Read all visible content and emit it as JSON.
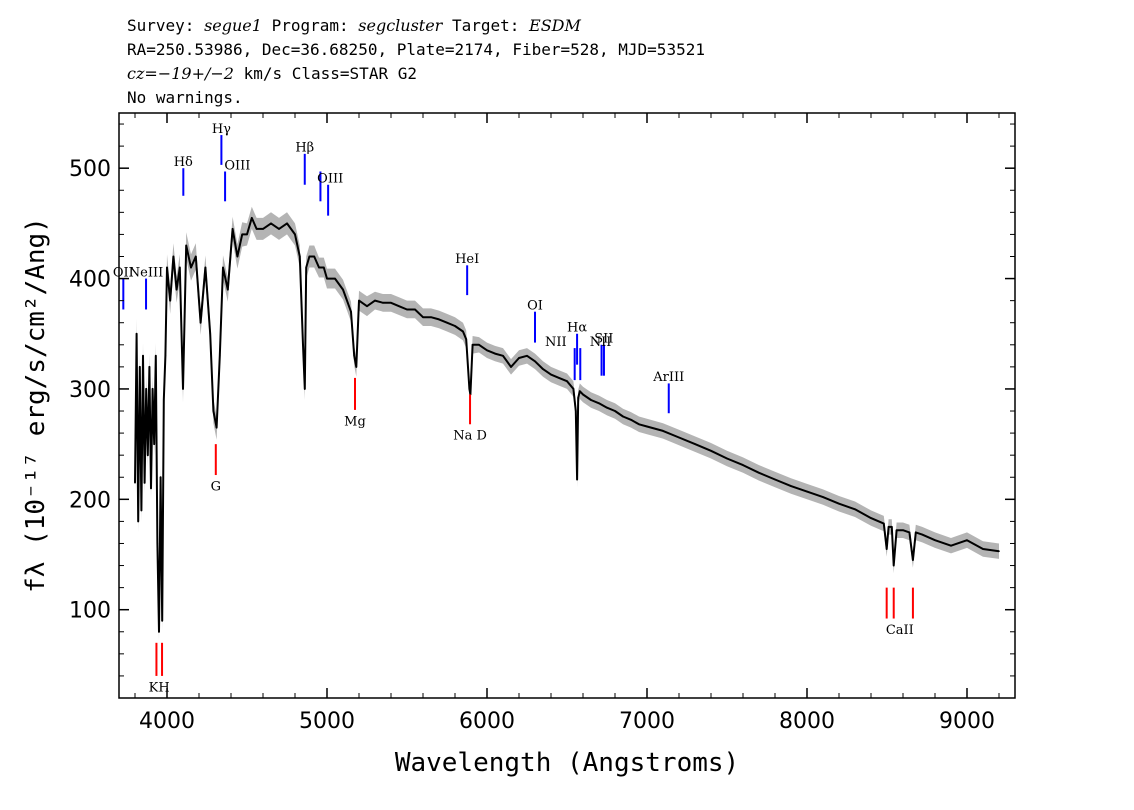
{
  "header": {
    "survey_label": "Survey: ",
    "survey": "segue1",
    "program_label": " Program: ",
    "program": "segcluster",
    "target_label": " Target: ",
    "target": "ESDM",
    "line2": "RA=250.53986, Dec=36.68250, Plate=2174, Fiber=528, MJD=53521",
    "cz": "cz",
    "cz_value": "=−19+/−2",
    "cz_rest": " km/s Class=STAR G2",
    "line4": "No warnings."
  },
  "chart_data": {
    "type": "line",
    "title": "",
    "xlabel": "Wavelength (Angstroms)",
    "ylabel": "fλ (10⁻¹⁷ erg/s/cm²/Ang)",
    "xlim": [
      3700,
      9300
    ],
    "ylim": [
      20,
      550
    ],
    "xticks": [
      4000,
      5000,
      6000,
      7000,
      8000,
      9000
    ],
    "yticks": [
      100,
      200,
      300,
      400,
      500
    ],
    "grid": false,
    "flux_color": "#000000",
    "error_color": "#b4b4b4",
    "emission_line_color": "#0000ff",
    "absorption_line_color": "#ff0000",
    "series": [
      {
        "x": [
          3800,
          3810,
          3820,
          3830,
          3840,
          3850,
          3860,
          3870,
          3880,
          3890,
          3900,
          3910,
          3920,
          3930,
          3940,
          3950,
          3960,
          3970,
          3980,
          3990,
          4000,
          4020,
          4040,
          4060,
          4080,
          4100,
          4120,
          4150,
          4180,
          4210,
          4240,
          4270,
          4290,
          4310,
          4330,
          4350,
          4380,
          4410,
          4440,
          4470,
          4500,
          4530,
          4560,
          4600,
          4650,
          4700,
          4750,
          4800,
          4830,
          4850,
          4861,
          4870,
          4890,
          4920,
          4950,
          4980,
          5000,
          5050,
          5100,
          5150,
          5170,
          5183,
          5200,
          5250,
          5300,
          5350,
          5400,
          5450,
          5500,
          5550,
          5600,
          5650,
          5700,
          5750,
          5800,
          5850,
          5870,
          5890,
          5896,
          5910,
          5950,
          6000,
          6050,
          6100,
          6150,
          6200,
          6250,
          6300,
          6350,
          6400,
          6450,
          6500,
          6540,
          6555,
          6563,
          6570,
          6580,
          6600,
          6650,
          6700,
          6750,
          6800,
          6850,
          6900,
          6950,
          7000,
          7100,
          7200,
          7300,
          7400,
          7500,
          7600,
          7700,
          7800,
          7900,
          8000,
          8100,
          8200,
          8300,
          8400,
          8480,
          8498,
          8510,
          8530,
          8542,
          8560,
          8600,
          8640,
          8662,
          8680,
          8720,
          8800,
          8900,
          9000,
          9100,
          9200
        ],
        "values": [
          215,
          350,
          180,
          320,
          190,
          330,
          215,
          300,
          240,
          320,
          210,
          300,
          250,
          330,
          160,
          80,
          220,
          90,
          290,
          330,
          410,
          380,
          420,
          390,
          410,
          300,
          430,
          410,
          420,
          360,
          410,
          350,
          280,
          265,
          330,
          410,
          390,
          445,
          420,
          440,
          440,
          455,
          445,
          445,
          450,
          445,
          450,
          440,
          420,
          340,
          300,
          410,
          420,
          420,
          410,
          410,
          400,
          400,
          390,
          370,
          330,
          320,
          380,
          375,
          380,
          378,
          378,
          375,
          372,
          372,
          365,
          365,
          363,
          360,
          357,
          352,
          345,
          300,
          295,
          340,
          340,
          335,
          332,
          330,
          320,
          328,
          330,
          325,
          318,
          313,
          310,
          307,
          300,
          280,
          218,
          292,
          298,
          295,
          290,
          287,
          283,
          280,
          275,
          272,
          268,
          266,
          262,
          256,
          250,
          244,
          237,
          231,
          224,
          218,
          212,
          207,
          202,
          196,
          191,
          183,
          178,
          155,
          175,
          175,
          140,
          172,
          172,
          170,
          145,
          170,
          168,
          163,
          158,
          163,
          155,
          153
        ],
        "error": [
          10,
          14,
          10,
          12,
          10,
          12,
          10,
          12,
          10,
          12,
          10,
          12,
          10,
          12,
          10,
          8,
          10,
          8,
          10,
          12,
          12,
          12,
          12,
          12,
          12,
          12,
          12,
          12,
          12,
          11,
          11,
          11,
          11,
          11,
          11,
          11,
          11,
          11,
          11,
          11,
          10,
          10,
          10,
          10,
          10,
          10,
          10,
          10,
          10,
          10,
          10,
          10,
          10,
          10,
          9,
          9,
          9,
          9,
          9,
          9,
          9,
          9,
          9,
          9,
          8,
          8,
          8,
          8,
          8,
          8,
          8,
          8,
          8,
          8,
          8,
          8,
          8,
          8,
          8,
          8,
          7,
          7,
          7,
          7,
          7,
          7,
          7,
          7,
          7,
          7,
          7,
          7,
          7,
          7,
          7,
          7,
          7,
          7,
          7,
          7,
          7,
          7,
          7,
          7,
          7,
          7,
          7,
          7,
          7,
          7,
          7,
          7,
          7,
          7,
          7,
          7,
          7,
          7,
          7,
          7,
          7,
          7,
          7,
          7,
          7,
          7,
          7,
          7,
          7,
          7,
          7,
          7,
          7,
          7,
          7,
          7
        ]
      }
    ],
    "emission_lines": [
      {
        "label": "OII",
        "x": 3727,
        "y_bottom": 372,
        "y_top": 400
      },
      {
        "label": "NeIII",
        "x": 3869,
        "y_bottom": 372,
        "y_top": 400
      },
      {
        "label": "Hδ",
        "x": 4102,
        "y_bottom": 475,
        "y_top": 500
      },
      {
        "label": "Hγ",
        "x": 4340,
        "y_bottom": 503,
        "y_top": 530
      },
      {
        "label": "OIII",
        "x": 4363,
        "y_bottom": 470,
        "y_top": 497
      },
      {
        "label": "Hβ",
        "x": 4861,
        "y_bottom": 485,
        "y_top": 513
      },
      {
        "label": "OIII",
        "x": 4959,
        "y_bottom": 470,
        "y_top": 497
      },
      {
        "label": "OIII",
        "x": 5007,
        "y_bottom": 457,
        "y_top": 485
      },
      {
        "label": "HeI",
        "x": 5876,
        "y_bottom": 385,
        "y_top": 412
      },
      {
        "label": "OI",
        "x": 6300,
        "y_bottom": 342,
        "y_top": 370
      },
      {
        "label": "NII",
        "x": 6548,
        "y_bottom": 308,
        "y_top": 337
      },
      {
        "label": "Hα",
        "x": 6563,
        "y_bottom": 322,
        "y_top": 350
      },
      {
        "label": "NII",
        "x": 6583,
        "y_bottom": 308,
        "y_top": 337
      },
      {
        "label": "SII",
        "x": 6716,
        "y_bottom": 312,
        "y_top": 340
      },
      {
        "label": "SII",
        "x": 6731,
        "y_bottom": 312,
        "y_top": 340
      },
      {
        "label": "ArIII",
        "x": 7136,
        "y_bottom": 278,
        "y_top": 305
      }
    ],
    "absorption_lines": [
      {
        "label": "K",
        "x": 3934,
        "y_bottom": 40,
        "y_top": 70
      },
      {
        "label": "H",
        "x": 3969,
        "y_bottom": 40,
        "y_top": 70
      },
      {
        "label": "G",
        "x": 4305,
        "y_bottom": 222,
        "y_top": 250
      },
      {
        "label": "Mg",
        "x": 5175,
        "y_bottom": 281,
        "y_top": 310
      },
      {
        "label": "Na D",
        "x": 5894,
        "y_bottom": 268,
        "y_top": 295
      },
      {
        "label": "CaII",
        "x": 8498,
        "y_bottom": 92,
        "y_top": 120
      },
      {
        "label": "CaII",
        "x": 8542,
        "y_bottom": 92,
        "y_top": 120
      },
      {
        "label": "CaII",
        "x": 8662,
        "y_bottom": 92,
        "y_top": 120
      }
    ],
    "line_labels": [
      {
        "text": "OII",
        "x": 3727,
        "y": 402,
        "kind": "emission"
      },
      {
        "text": "NeIII",
        "x": 3869,
        "y": 402,
        "kind": "emission"
      },
      {
        "text": "Hδ",
        "x": 4102,
        "y": 502,
        "kind": "emission"
      },
      {
        "text": "Hγ",
        "x": 4340,
        "y": 532,
        "kind": "emission"
      },
      {
        "text": "OIII",
        "x": 4440,
        "y": 499,
        "kind": "emission"
      },
      {
        "text": "Hβ",
        "x": 4861,
        "y": 515,
        "kind": "emission"
      },
      {
        "text": "OIII",
        "x": 5020,
        "y": 487,
        "kind": "emission"
      },
      {
        "text": "HeI",
        "x": 5876,
        "y": 414,
        "kind": "emission"
      },
      {
        "text": "OI",
        "x": 6300,
        "y": 372,
        "kind": "emission"
      },
      {
        "text": "Hα",
        "x": 6563,
        "y": 352,
        "kind": "emission"
      },
      {
        "text": "NII",
        "x": 6430,
        "y": 339,
        "kind": "emission"
      },
      {
        "text": "NII",
        "x": 6710,
        "y": 339,
        "kind": "emission"
      },
      {
        "text": "SII",
        "x": 6730,
        "y": 342,
        "kind": "emission"
      },
      {
        "text": "ArIII",
        "x": 7136,
        "y": 307,
        "kind": "emission"
      },
      {
        "text": "KH",
        "x": 3951,
        "y": 26,
        "kind": "absorption"
      },
      {
        "text": "G",
        "x": 4305,
        "y": 208,
        "kind": "absorption"
      },
      {
        "text": "Mg",
        "x": 5175,
        "y": 267,
        "kind": "absorption"
      },
      {
        "text": "Na D",
        "x": 5894,
        "y": 254,
        "kind": "absorption"
      },
      {
        "text": "CaII",
        "x": 8580,
        "y": 78,
        "kind": "absorption"
      }
    ]
  }
}
